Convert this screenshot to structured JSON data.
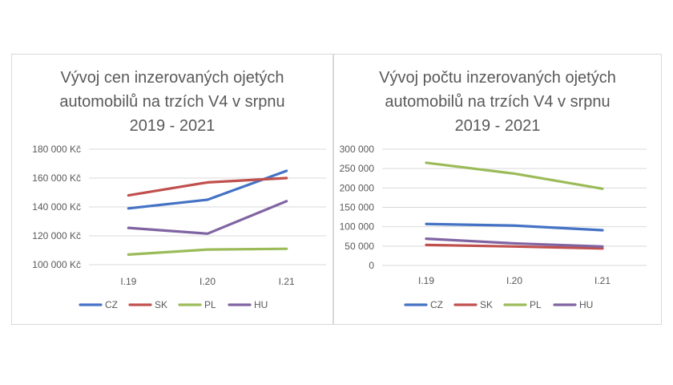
{
  "chart_data": [
    {
      "type": "line",
      "title_lines": [
        "Vývoj cen inzerovaných ojetých",
        "automobilů na trzích V4 v srpnu",
        "2019 - 2021"
      ],
      "categories": [
        "I.19",
        "I.20",
        "I.21"
      ],
      "ylim": [
        100000,
        180000
      ],
      "yticks": [
        100000,
        120000,
        140000,
        160000,
        180000
      ],
      "ytick_labels": [
        "100 000 Kč",
        "120 000 Kč",
        "140 000 Kč",
        "160 000 Kč",
        "180 000 Kč"
      ],
      "grid": true,
      "legend": "bottom",
      "series": [
        {
          "name": "CZ",
          "color": "#4472C4",
          "values": [
            139000,
            145000,
            165000
          ]
        },
        {
          "name": "SK",
          "color": "#C0504D",
          "values": [
            148000,
            157000,
            160000
          ]
        },
        {
          "name": "PL",
          "color": "#9BBB59",
          "values": [
            107000,
            110500,
            111000
          ]
        },
        {
          "name": "HU",
          "color": "#8064A2",
          "values": [
            125500,
            121500,
            144000
          ]
        }
      ]
    },
    {
      "type": "line",
      "title_lines": [
        "Vývoj počtu inzerovaných ojetých",
        "automobilů na trzích V4 v srpnu",
        "2019 - 2021"
      ],
      "categories": [
        "I.19",
        "I.20",
        "I.21"
      ],
      "ylim": [
        0,
        300000
      ],
      "yticks": [
        0,
        50000,
        100000,
        150000,
        200000,
        250000,
        300000
      ],
      "ytick_labels": [
        "0",
        "50 000",
        "100 000",
        "150 000",
        "200 000",
        "250 000",
        "300 000"
      ],
      "grid": true,
      "legend": "bottom",
      "series": [
        {
          "name": "CZ",
          "color": "#4472C4",
          "values": [
            107000,
            103000,
            91000
          ]
        },
        {
          "name": "SK",
          "color": "#C0504D",
          "values": [
            53000,
            49000,
            44000
          ]
        },
        {
          "name": "PL",
          "color": "#9BBB59",
          "values": [
            265000,
            237000,
            198000
          ]
        },
        {
          "name": "HU",
          "color": "#8064A2",
          "values": [
            69000,
            57000,
            49000
          ]
        }
      ]
    }
  ]
}
